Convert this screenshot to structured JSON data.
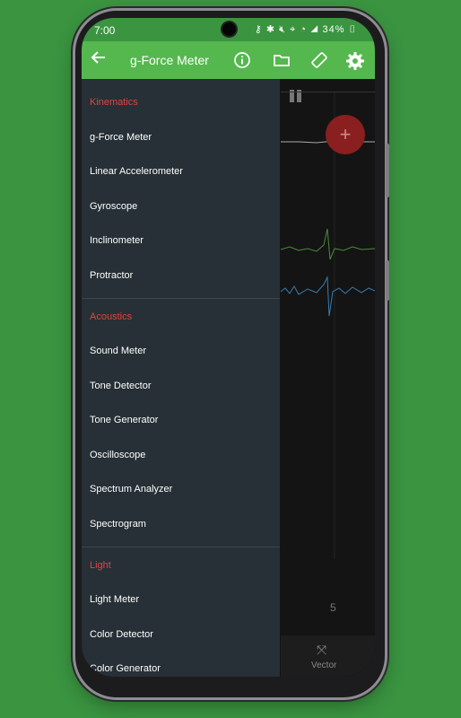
{
  "status": {
    "time": "7:00",
    "battery": "34%"
  },
  "appbar": {
    "title": "g-Force Meter"
  },
  "drawer": {
    "sections": [
      {
        "title": "Kinematics",
        "items": [
          "g-Force Meter",
          "Linear Accelerometer",
          "Gyroscope",
          "Inclinometer",
          "Protractor"
        ]
      },
      {
        "title": "Acoustics",
        "items": [
          "Sound Meter",
          "Tone Detector",
          "Tone Generator",
          "Oscilloscope",
          "Spectrum Analyzer",
          "Spectrogram"
        ]
      },
      {
        "title": "Light",
        "items": [
          "Light Meter",
          "Color Detector",
          "Color Generator"
        ]
      }
    ]
  },
  "content": {
    "fab_symbol": "+",
    "axis_tick": "5",
    "bottom_label": "Vector"
  },
  "colors": {
    "background": "#3a9440",
    "appbar": "#55b84e",
    "drawer": "#263036",
    "section_title": "#e1443f",
    "fab": "#8a1f1f"
  }
}
